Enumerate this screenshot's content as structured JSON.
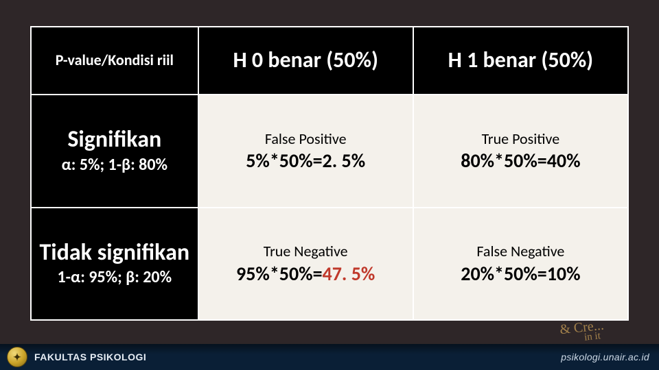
{
  "table": {
    "corner_header": "P-value/Kondisi riil",
    "col_headers": [
      "H 0 benar (50%)",
      "H 1 benar (50%)"
    ],
    "rows": [
      {
        "title": "Signifikan",
        "sub": "α: 5%; 1-β: 80%",
        "cells": [
          {
            "label": "False Positive",
            "calc_prefix": "5%*50%=",
            "calc_value": "2. 5%",
            "highlight": false
          },
          {
            "label": "True Positive",
            "calc_prefix": "80%*50%=",
            "calc_value": "40%",
            "highlight": false
          }
        ]
      },
      {
        "title": "Tidak signifikan",
        "sub": "1-α: 95%; β: 20%",
        "cells": [
          {
            "label": "True Negative",
            "calc_prefix": "95%*50%=",
            "calc_value": "47. 5%",
            "highlight": true
          },
          {
            "label": "False Negative",
            "calc_prefix": "20%*50%=",
            "calc_value": "10%",
            "highlight": false
          }
        ]
      }
    ],
    "colors": {
      "header_bg": "#000000",
      "header_fg": "#ffffff",
      "cell_bg": "#f4f1eb",
      "cell_fg": "#000000",
      "border": "#ffffff",
      "highlight": "#c0392b"
    },
    "col_widths_pct": [
      28,
      36,
      36
    ],
    "font": {
      "corner_size_pt": 17,
      "col_header_size_pt": 24,
      "row_title_size_pt": 26,
      "row_sub_size_pt": 18,
      "cell_label_size_pt": 16,
      "cell_calc_size_pt": 21,
      "family": "Calibri"
    }
  },
  "footer": {
    "faculty_plain": "FAKULTAS",
    "faculty_bold": " PSIKOLOGI",
    "url": "psikologi.unair.ac.id",
    "bg_colors": [
      "#06111d",
      "#0a1f36"
    ],
    "text_color": "#e8eef5"
  },
  "decor": {
    "scribble_line1": "& Cre...",
    "scribble_line2": "in it",
    "scribble_color": "#b08b4f"
  }
}
